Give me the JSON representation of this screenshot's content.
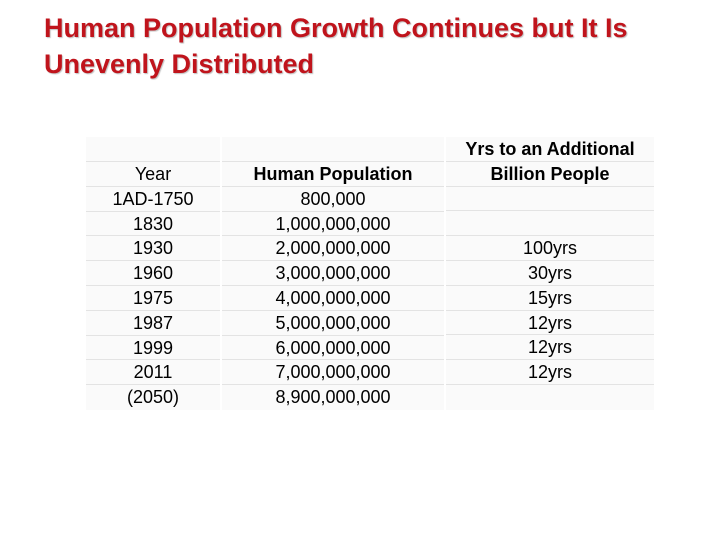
{
  "title": {
    "line1": "Human Population Growth Continues but It Is",
    "line2": "Unevenly Distributed"
  },
  "table": {
    "col1_header": "Year",
    "col2_header": "Human Population",
    "col3_header_line1": "Yrs to an Additional",
    "col3_header_line2": "Billion People",
    "years": [
      "1AD-1750",
      "1830",
      "1930",
      "1960",
      "1975",
      "1987",
      "1999",
      "2011",
      "(2050)"
    ],
    "populations": [
      "800,000",
      "1,000,000,000",
      "2,000,000,000",
      "3,000,000,000",
      "4,000,000,000",
      "5,000,000,000",
      "6,000,000,000",
      "7,000,000,000",
      "8,900,000,000"
    ],
    "yrs_to_billion": [
      "",
      "",
      "100yrs",
      "30yrs",
      "15yrs",
      "12yrs",
      "12yrs",
      "12yrs",
      ""
    ]
  },
  "colors": {
    "title": "#c0141c",
    "table_bg": "#fafafa"
  }
}
